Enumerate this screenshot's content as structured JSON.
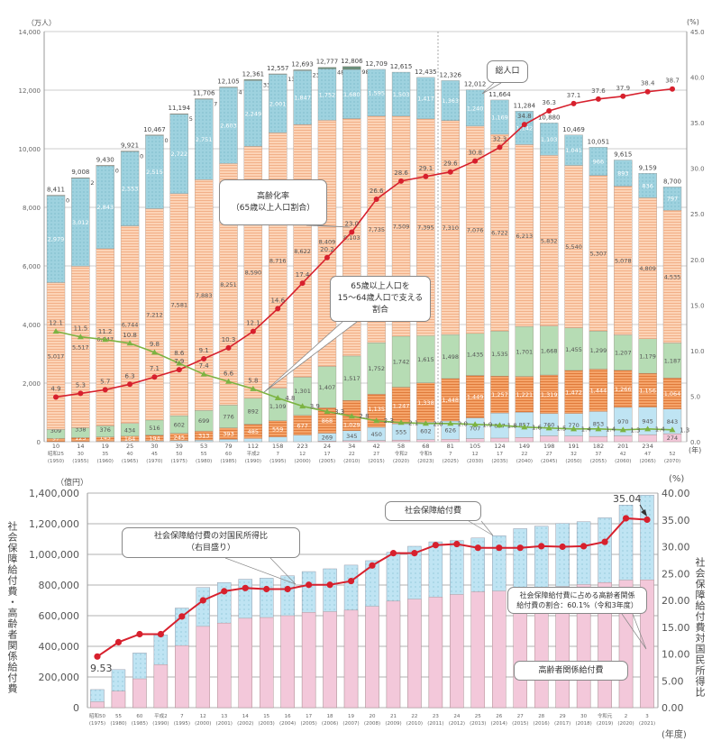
{
  "chart_data": [
    {
      "type": "bar",
      "stacked": true,
      "left_unit": "（万人）",
      "right_unit": "(%)",
      "x_unit": "(年)",
      "ylim": [
        0,
        14000
      ],
      "y_ticks": [
        "0",
        "2,000",
        "4,000",
        "6,000",
        "8,000",
        "10,000",
        "12,000",
        "14,000"
      ],
      "y2lim": [
        0,
        45
      ],
      "y2_ticks": [
        "0.0",
        "5.0",
        "10.0",
        "15.0",
        "20.0",
        "25.0",
        "30.0",
        "35.0",
        "40.0",
        "45.0"
      ],
      "grid": true,
      "categories": [
        [
          "昭和25",
          "(1950)"
        ],
        [
          "30",
          "(1955)"
        ],
        [
          "35",
          "(1960)"
        ],
        [
          "40",
          "(1965)"
        ],
        [
          "45",
          "(1970)"
        ],
        [
          "50",
          "(1975)"
        ],
        [
          "55",
          "(1980)"
        ],
        [
          "60",
          "(1985)"
        ],
        [
          "平成2",
          "(1990)"
        ],
        [
          "7",
          "(1995)"
        ],
        [
          "12",
          "(2000)"
        ],
        [
          "17",
          "(2005)"
        ],
        [
          "22",
          "(2010)"
        ],
        [
          "27",
          "(2015)"
        ],
        [
          "令和2",
          "(2020)"
        ],
        [
          "令和5",
          "(2023)"
        ],
        [
          "7",
          "(2025)"
        ],
        [
          "12",
          "(2030)"
        ],
        [
          "17",
          "(2035)"
        ],
        [
          "22",
          "(2040)"
        ],
        [
          "27",
          "(2045)"
        ],
        [
          "32",
          "(2050)"
        ],
        [
          "37",
          "(2055)"
        ],
        [
          "42",
          "(2060)"
        ],
        [
          "47",
          "(2065)"
        ],
        [
          "52",
          "(2070)"
        ]
      ],
      "projection_divider_after": "令和5 (2023)",
      "stack_series": [
        {
          "color": "#f3c8da",
          "pattern": "plain",
          "values": [
            null,
            null,
            null,
            null,
            null,
            null,
            null,
            null,
            null,
            null,
            null,
            24,
            34,
            42,
            58,
            68,
            81,
            105,
            124,
            149,
            198,
            191,
            182,
            201,
            234,
            274
          ]
        },
        {
          "color": "#bfe4f3",
          "pattern": "plain",
          "values": [
            10,
            14,
            19,
            25,
            30,
            39,
            53,
            79,
            112,
            158,
            223,
            269,
            345,
            450,
            555,
            602,
            626,
            707,
            857,
            857,
            760,
            770,
            853,
            970,
            945,
            843
          ]
        },
        {
          "color": "#f5a46a",
          "pattern": "stripes",
          "values": [
            97,
            125,
            145,
            164,
            194,
            245,
            313,
            393,
            485,
            559,
            677,
            868,
            1029,
            1135,
            1247,
            1338,
            1448,
            1449,
            1257,
            1221,
            1319,
            1472,
            1444,
            1266,
            1156,
            1064
          ]
        },
        {
          "color": "#b6dcb4",
          "pattern": "plain",
          "values": [
            309,
            338,
            376,
            434,
            516,
            602,
            699,
            776,
            892,
            1109,
            1301,
            1407,
            1517,
            1752,
            1742,
            1615,
            1498,
            1435,
            1535,
            1701,
            1668,
            1455,
            1299,
            1207,
            1179,
            1187
          ]
        },
        {
          "color": "#fcd3b6",
          "pattern": "stripes",
          "values": [
            5017,
            5517,
            6047,
            6744,
            7212,
            7581,
            7883,
            8251,
            8590,
            8716,
            8622,
            8409,
            8103,
            7735,
            7509,
            7395,
            7310,
            7076,
            6722,
            6213,
            5832,
            5540,
            5307,
            5078,
            4809,
            4535
          ]
        },
        {
          "color": "#9ed2df",
          "pattern": "dots",
          "values": [
            2979,
            3012,
            2843,
            2553,
            2515,
            2722,
            2751,
            2603,
            2249,
            2001,
            1847,
            1752,
            1680,
            1595,
            1503,
            1417,
            1363,
            1240,
            1169,
            1142,
            1103,
            1041,
            966,
            893,
            836,
            797
          ]
        },
        {
          "color": "#6a8f7a",
          "pattern": "plain",
          "values": [
            0,
            2,
            0,
            0,
            0,
            5,
            7,
            4,
            33,
            13,
            23,
            48,
            98,
            null,
            null,
            null,
            null,
            null,
            null,
            null,
            null,
            null,
            null,
            null,
            null,
            null
          ]
        }
      ],
      "totals": [
        "8,411",
        "9,008",
        "9,430",
        "9,921",
        "10,467",
        "11,194",
        "11,706",
        "12,105",
        "12,361",
        "12,557",
        "12,693",
        "12,777",
        "12,806",
        "12,709",
        "12,615",
        "12,435",
        "12,326",
        "12,012",
        "11,664",
        "11,284",
        "10,880",
        "10,469",
        "10,051",
        "9,615",
        "9,159",
        "8,700"
      ],
      "line_series": [
        {
          "axis": "right",
          "color": "#d7202d",
          "marker": "circle",
          "values": [
            4.9,
            5.3,
            5.7,
            6.3,
            7.1,
            7.9,
            9.1,
            10.3,
            12.1,
            14.6,
            17.4,
            20.2,
            23.0,
            26.6,
            28.6,
            29.1,
            29.6,
            30.8,
            32.3,
            34.8,
            36.3,
            37.1,
            37.6,
            37.9,
            38.4,
            38.7
          ]
        },
        {
          "axis": "right",
          "color": "#7cb342",
          "marker": "triangle",
          "values": [
            12.1,
            11.5,
            11.2,
            10.8,
            9.8,
            8.6,
            7.4,
            6.6,
            5.8,
            4.8,
            3.9,
            3.3,
            2.8,
            2.3,
            2.1,
            2.0,
            2.0,
            1.9,
            1.8,
            1.6,
            1.5,
            1.4,
            1.4,
            1.3,
            1.4,
            1.3
          ]
        }
      ],
      "annotations": {
        "total": "総人口",
        "aging_rate": "高齢化率\n（65歳以上人口割合）",
        "support_ratio": "65歳以上人口を\n15～64歳人口で支える\n割合"
      }
    },
    {
      "type": "bar",
      "left_unit": "（億円）",
      "right_unit": "(%)",
      "x_unit": "(年度)",
      "ylabel": "社会保障給付費・高齢者関係給付費",
      "y2label": "社会保障給付費対国民所得比",
      "ylim": [
        0,
        1400000
      ],
      "y_ticks": [
        "0",
        "200,000",
        "400,000",
        "600,000",
        "800,000",
        "1,000,000",
        "1,200,000",
        "1,400,000"
      ],
      "y2lim": [
        0,
        40
      ],
      "y2_ticks": [
        "0.00",
        "5.00",
        "10.00",
        "15.00",
        "20.00",
        "25.00",
        "30.00",
        "35.00",
        "40.00"
      ],
      "grid": true,
      "categories": [
        [
          "昭和50",
          "(1975)"
        ],
        [
          "55",
          "(1980)"
        ],
        [
          "60",
          "(1985)"
        ],
        [
          "平成2",
          "(1990)"
        ],
        [
          "7",
          "(1995)"
        ],
        [
          "12",
          "(2000)"
        ],
        [
          "13",
          "(2001)"
        ],
        [
          "14",
          "(2002)"
        ],
        [
          "15",
          "(2003)"
        ],
        [
          "16",
          "(2004)"
        ],
        [
          "17",
          "(2005)"
        ],
        [
          "18",
          "(2006)"
        ],
        [
          "19",
          "(2007)"
        ],
        [
          "20",
          "(2008)"
        ],
        [
          "21",
          "(2009)"
        ],
        [
          "22",
          "(2010)"
        ],
        [
          "23",
          "(2011)"
        ],
        [
          "24",
          "(2012)"
        ],
        [
          "25",
          "(2013)"
        ],
        [
          "26",
          "(2014)"
        ],
        [
          "27",
          "(2015)"
        ],
        [
          "28",
          "(2016)"
        ],
        [
          "29",
          "(2017)"
        ],
        [
          "30",
          "(2018)"
        ],
        [
          "令和元",
          "(2019)"
        ],
        [
          "2",
          "(2020)"
        ],
        [
          "3",
          "(2021)"
        ]
      ],
      "social_security_total": {
        "color": "#bfe4f3",
        "values": [
          118000,
          248000,
          357000,
          474000,
          650000,
          784000,
          816000,
          838000,
          845000,
          860000,
          888000,
          906000,
          930000,
          959000,
          1013000,
          1053000,
          1082000,
          1090000,
          1107000,
          1122000,
          1168000,
          1184000,
          1202000,
          1213000,
          1239000,
          1322000,
          1387000
        ]
      },
      "elderly_related": {
        "color": "#f3c8da",
        "values": [
          38000,
          107500,
          188000,
          280000,
          405000,
          530000,
          552000,
          583000,
          588000,
          600000,
          621000,
          626000,
          636000,
          660000,
          695000,
          708000,
          721000,
          738000,
          756000,
          760000,
          771000,
          777000,
          790000,
          803000,
          816000,
          832000,
          834000
        ]
      },
      "ratio_to_national_income": {
        "color": "#d7202d",
        "values": [
          9.53,
          12.2,
          13.7,
          13.7,
          17.0,
          20.0,
          21.7,
          22.3,
          22.1,
          22.1,
          22.9,
          22.9,
          23.6,
          26.5,
          28.8,
          28.8,
          30.3,
          30.5,
          29.8,
          29.8,
          29.8,
          30.1,
          30.0,
          30.1,
          30.9,
          35.3,
          35.04
        ]
      },
      "labeled_points": {
        "first": "9.53",
        "last": "35.04"
      },
      "annotations": {
        "ratio": "社会保障給付費の対国民所得比\n（右目盛り）",
        "total": "社会保障給付費",
        "share": "社会保障給付費に占める高齢者関係\n給付費の割合：60.1%（令和3年度）",
        "elderly": "高齢者関係給付費"
      }
    }
  ]
}
